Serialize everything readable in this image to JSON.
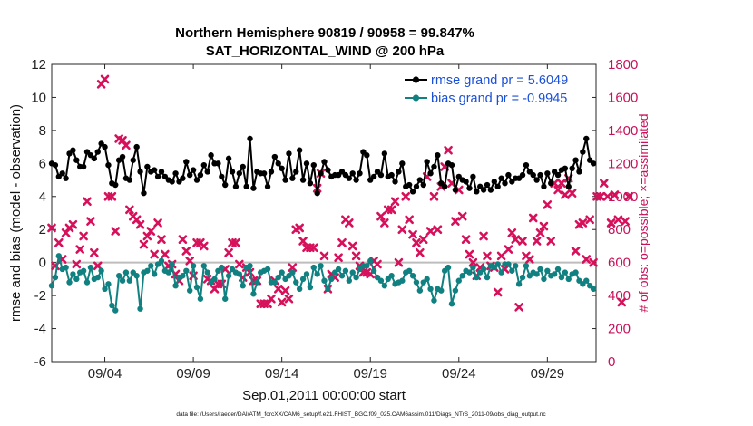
{
  "chart_data": {
    "type": "line",
    "title_line1": "Northern Hemisphere 90819 / 90958 = 99.847%",
    "title_line2": "SAT_HORIZONTAL_WIND @ 200 hPa",
    "xlabel": "Sep.01,2011 00:00:00 start",
    "ylabel_left": "rmse and bias (model - observation)",
    "ylabel_right": "# of obs: o=possible; ×=assimilated",
    "ylim_left": [
      -6,
      12
    ],
    "yticks_left": [
      "-6",
      "-4",
      "-2",
      "0",
      "2",
      "4",
      "6",
      "8",
      "10",
      "12"
    ],
    "ylim_right": [
      0,
      1800
    ],
    "yticks_right": [
      "0",
      "200",
      "400",
      "600",
      "800",
      "1000",
      "1200",
      "1400",
      "1600",
      "1800"
    ],
    "xlim_days": [
      1,
      31.75
    ],
    "xticks": [
      {
        "label": "09/04",
        "day": 4
      },
      {
        "label": "09/09",
        "day": 9
      },
      {
        "label": "09/14",
        "day": 14
      },
      {
        "label": "09/19",
        "day": 19
      },
      {
        "label": "09/24",
        "day": 24
      },
      {
        "label": "09/29",
        "day": 29
      }
    ],
    "zero_line": true,
    "grid": false,
    "legend_position": "top-right",
    "series": [
      {
        "name": "rmse grand pr = 5.6049",
        "axis": "left",
        "color": "#000000",
        "marker": "circle",
        "values": [
          6.0,
          5.9,
          5.2,
          5.4,
          5.1,
          6.6,
          6.8,
          6.2,
          5.8,
          5.8,
          6.7,
          6.5,
          6.3,
          6.7,
          7.2,
          7.0,
          5.9,
          4.8,
          4.7,
          6.2,
          6.4,
          5.1,
          5.0,
          6.2,
          7.0,
          5.5,
          4.2,
          5.8,
          5.5,
          5.6,
          5.2,
          5.5,
          5.2,
          5.0,
          4.9,
          5.4,
          4.9,
          5.1,
          6.1,
          5.3,
          5.6,
          5.0,
          5.3,
          5.9,
          5.5,
          6.5,
          6.0,
          6.0,
          5.2,
          4.7,
          6.3,
          5.5,
          4.6,
          5.4,
          5.8,
          4.6,
          7.5,
          4.5,
          5.5,
          5.4,
          5.4,
          4.6,
          5.5,
          6.4,
          6.0,
          5.7,
          5.0,
          6.6,
          5.1,
          5.5,
          6.8,
          5.0,
          6.0,
          4.8,
          5.9,
          4.2,
          5.4,
          6.1,
          5.6,
          5.2,
          5.3,
          5.3,
          5.5,
          5.3,
          5.1,
          5.4,
          5.0,
          5.4,
          6.7,
          6.5,
          5.0,
          5.2,
          5.5,
          5.3,
          6.6,
          5.2,
          5.3,
          4.9,
          5.5,
          6.0,
          4.6,
          4.7,
          4.3,
          4.6,
          5.0,
          4.7,
          6.1,
          5.4,
          5.8,
          6.5,
          4.8,
          4.6,
          6.0,
          5.9,
          4.4,
          5.2,
          5.0,
          4.9,
          4.5,
          5.2,
          4.3,
          4.6,
          4.4,
          4.7,
          4.4,
          4.9,
          4.6,
          5.1,
          4.8,
          5.3,
          4.9,
          5.1,
          5.1,
          5.3,
          5.9,
          5.5,
          5.3,
          5.0,
          5.3,
          4.6,
          5.4,
          4.8,
          5.5,
          5.3,
          5.6,
          5.7,
          4.6,
          5.7,
          6.2,
          5.5,
          6.7,
          7.5,
          6.2,
          6.0
        ]
      },
      {
        "name": "bias grand pr = -0.9945",
        "axis": "left",
        "color": "#108080",
        "marker": "circle",
        "values": [
          -1.4,
          -0.9,
          0.4,
          -0.4,
          -0.3,
          -1.2,
          -0.7,
          -1.0,
          -0.6,
          -0.5,
          -1.2,
          -0.3,
          -1.0,
          -0.9,
          -0.5,
          -1.6,
          -1.3,
          -2.6,
          -2.9,
          -0.8,
          -1.1,
          -0.6,
          -1.1,
          -0.6,
          -0.8,
          -2.8,
          -0.6,
          -0.5,
          -0.2,
          -0.7,
          -0.1,
          0.1,
          -0.5,
          -0.6,
          -0.1,
          -1.4,
          -0.9,
          -0.8,
          -0.5,
          -1.7,
          -0.2,
          -1.5,
          -2.2,
          -0.2,
          -0.6,
          -1.2,
          -1.0,
          -0.5,
          -0.3,
          -2.2,
          -0.8,
          -0.4,
          -0.6,
          -0.7,
          -1.4,
          -0.3,
          -0.2,
          -1.9,
          -1.2,
          -0.6,
          -0.5,
          -0.4,
          -1.2,
          -1.2,
          -0.9,
          -0.6,
          -1.0,
          -0.8,
          -0.6,
          -1.2,
          -1.6,
          -1.0,
          -0.7,
          -1.5,
          -0.3,
          -0.7,
          -0.2,
          -1.1,
          -1.6,
          -1.0,
          -0.6,
          -0.4,
          -0.8,
          -0.5,
          -1.1,
          -0.6,
          -0.9,
          -0.4,
          -0.2,
          -0.2,
          0.1,
          -0.5,
          -0.9,
          -1.1,
          -1.4,
          -1.0,
          -0.8,
          -1.3,
          -1.2,
          -1.1,
          -0.6,
          -0.5,
          -0.8,
          -1.2,
          -1.7,
          -1.2,
          -1.0,
          -1.6,
          -2.3,
          -1.6,
          -1.7,
          -0.5,
          -0.3,
          -2.5,
          -1.7,
          -1.1,
          -0.8,
          -0.5,
          -0.6,
          -0.3,
          -0.9,
          -0.6,
          -0.4,
          -0.9,
          -0.2,
          -0.3,
          -0.1,
          -0.6,
          -0.1,
          -0.1,
          -0.5,
          -0.2,
          -1.3,
          -0.9,
          -0.2,
          -0.8,
          -0.6,
          -0.7,
          -0.4,
          -1.0,
          -0.5,
          -0.8,
          -0.7,
          -0.4,
          -0.9,
          -0.6,
          -1.0,
          -0.7,
          -0.6,
          -1.1,
          -1.3,
          -1.1,
          -1.4,
          -1.6
        ]
      },
      {
        "name": "assimilated",
        "axis": "right",
        "color": "#d6105a",
        "marker": "x",
        "values": [
          810,
          580,
          720,
          620,
          780,
          810,
          830,
          590,
          680,
          760,
          970,
          850,
          660,
          580,
          1680,
          1710,
          1000,
          1000,
          790,
          1350,
          1340,
          1310,
          920,
          880,
          860,
          830,
          710,
          760,
          790,
          650,
          840,
          740,
          650,
          580,
          590,
          530,
          490,
          740,
          670,
          610,
          520,
          720,
          720,
          700,
          500,
          490,
          440,
          470,
          470,
          560,
          660,
          720,
          720,
          590,
          510,
          570,
          540,
          490,
          490,
          350,
          350,
          350,
          380,
          490,
          440,
          360,
          430,
          380,
          570,
          800,
          810,
          730,
          690,
          690,
          690,
          1050,
          1140,
          640,
          440,
          530,
          510,
          630,
          720,
          860,
          840,
          700,
          640,
          580,
          540,
          540,
          530,
          610,
          590,
          880,
          840,
          920,
          920,
          970,
          600,
          800,
          1000,
          860,
          770,
          720,
          660,
          740,
          1120,
          790,
          1000,
          800,
          1060,
          1180,
          1280,
          1080,
          850,
          1040,
          880,
          740,
          650,
          600,
          520,
          570,
          760,
          640,
          580,
          570,
          420,
          640,
          560,
          680,
          780,
          740,
          330,
          730,
          640,
          620,
          870,
          730,
          780,
          820,
          950,
          730,
          1080,
          1040,
          1080,
          1010,
          1110,
          1020,
          670,
          830,
          840,
          620,
          860,
          600,
          1000,
          1000,
          1080,
          1000,
          840,
          1010,
          860,
          360,
          850,
          1000
        ]
      }
    ]
  },
  "footer": "data file: /Users/raeder/DAI/ATM_forcXX/CAM6_setup/f.e21.FHIST_BGC.f09_025.CAM6assim.011/Diags_NTrS_2011-09/obs_diag_output.nc"
}
